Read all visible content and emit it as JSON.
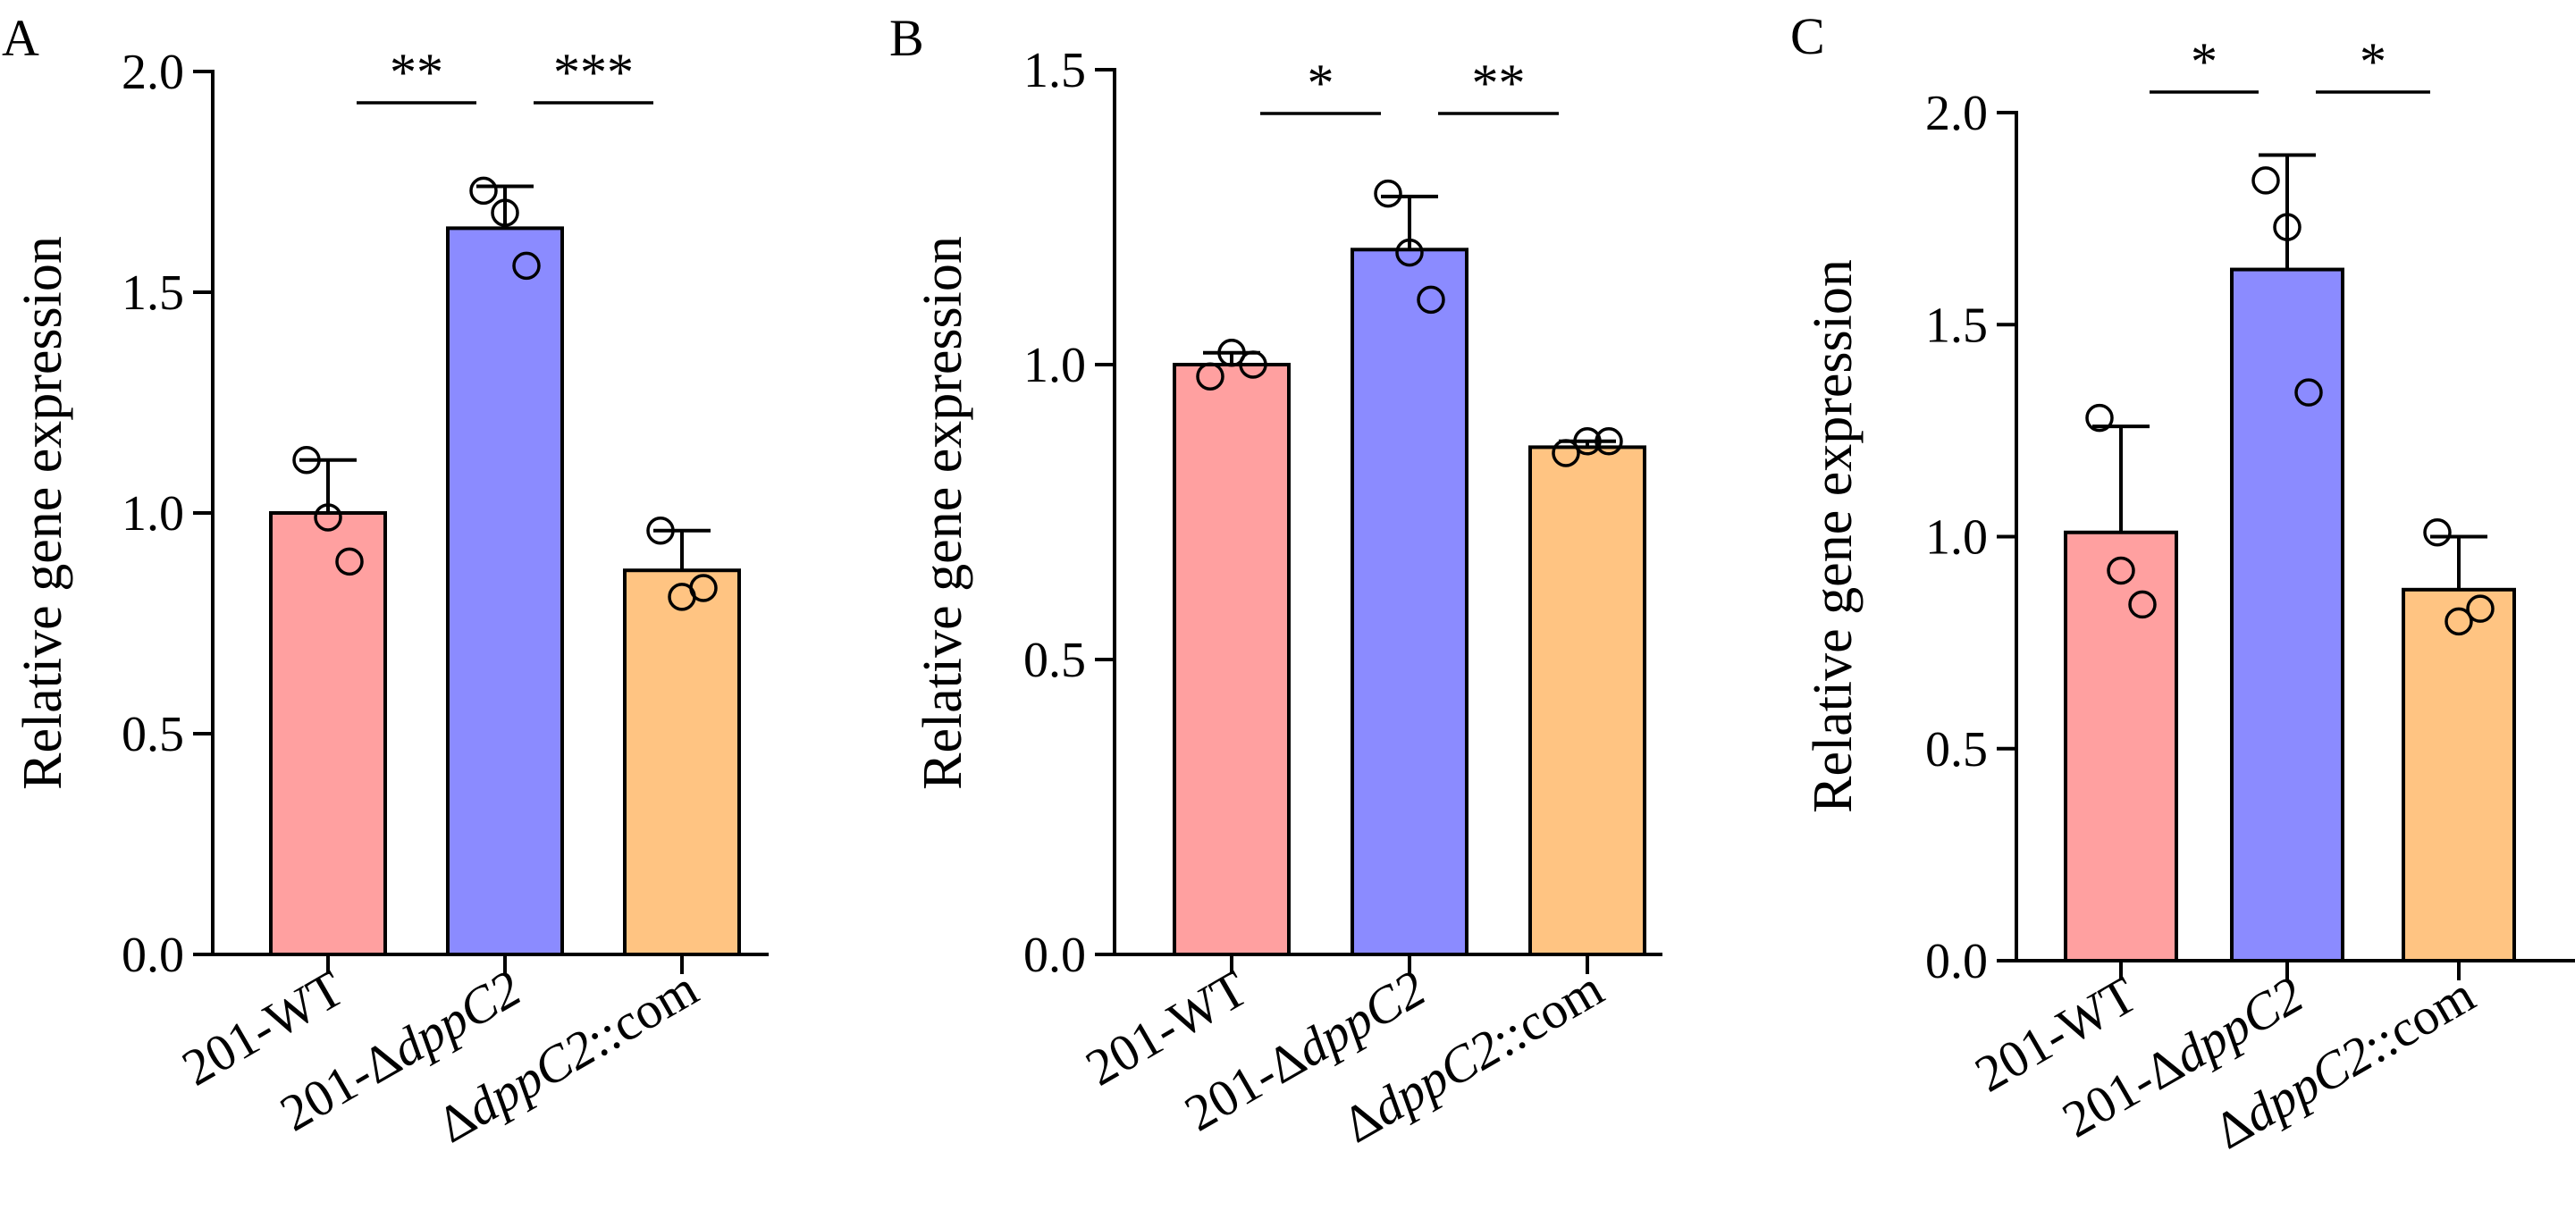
{
  "chart_data": [
    {
      "type": "bar",
      "panel": "A",
      "categories": [
        "201-WT",
        "201-ΔdppC2",
        "ΔdppC2::com"
      ],
      "category_parts": [
        {
          "prefix": "201-WT",
          "italic": "",
          "suffix": ""
        },
        {
          "prefix": "201-Δ",
          "italic": "dppC2",
          "suffix": ""
        },
        {
          "prefix": "Δ",
          "italic": "dppC2",
          "suffix": "::com"
        }
      ],
      "values": [
        1.0,
        1.645,
        0.87
      ],
      "errors": [
        0.12,
        0.095,
        0.09
      ],
      "points": [
        [
          1.12,
          0.99,
          0.89
        ],
        [
          1.73,
          1.68,
          1.56
        ],
        [
          0.96,
          0.81,
          0.83
        ]
      ],
      "significance": [
        {
          "from": 0,
          "to": 1,
          "label": "**"
        },
        {
          "from": 1,
          "to": 2,
          "label": "***"
        }
      ],
      "ylabel": "Relative gene expression",
      "ylim": [
        0,
        2.0
      ],
      "yticks": [
        0.0,
        0.5,
        1.0,
        1.5,
        2.0
      ],
      "ytick_labels": [
        "0.0",
        "0.5",
        "1.0",
        "1.5",
        "2.0"
      ],
      "colors": [
        "#ffa0a0",
        "#8b8bff",
        "#ffc482"
      ],
      "grid": false,
      "legend": "none"
    },
    {
      "type": "bar",
      "panel": "B",
      "categories": [
        "201-WT",
        "201-ΔdppC2",
        "ΔdppC2::com"
      ],
      "category_parts": [
        {
          "prefix": "201-WT",
          "italic": "",
          "suffix": ""
        },
        {
          "prefix": "201-Δ",
          "italic": "dppC2",
          "suffix": ""
        },
        {
          "prefix": "Δ",
          "italic": "dppC2",
          "suffix": "::com"
        }
      ],
      "values": [
        1.0,
        1.195,
        0.86
      ],
      "errors": [
        0.02,
        0.09,
        0.01
      ],
      "points": [
        [
          0.98,
          1.02,
          1.0
        ],
        [
          1.29,
          1.19,
          1.11
        ],
        [
          0.85,
          0.87,
          0.87
        ]
      ],
      "significance": [
        {
          "from": 0,
          "to": 1,
          "label": "*"
        },
        {
          "from": 1,
          "to": 2,
          "label": "**"
        }
      ],
      "ylabel": "Relative gene expression",
      "ylim": [
        0,
        1.5
      ],
      "yticks": [
        0.0,
        0.5,
        1.0,
        1.5
      ],
      "ytick_labels": [
        "0.0",
        "0.5",
        "1.0",
        "1.5"
      ],
      "colors": [
        "#ffa0a0",
        "#8b8bff",
        "#ffc482"
      ],
      "grid": false,
      "legend": "none"
    },
    {
      "type": "bar",
      "panel": "C",
      "categories": [
        "201-WT",
        "201-ΔdppC2",
        "ΔdppC2::com"
      ],
      "category_parts": [
        {
          "prefix": "201-WT",
          "italic": "",
          "suffix": ""
        },
        {
          "prefix": "201-Δ",
          "italic": "dppC2",
          "suffix": ""
        },
        {
          "prefix": "Δ",
          "italic": "dppC2",
          "suffix": "::com"
        }
      ],
      "values": [
        1.01,
        1.63,
        0.875
      ],
      "errors": [
        0.25,
        0.27,
        0.125
      ],
      "points": [
        [
          1.28,
          0.92,
          0.84
        ],
        [
          1.84,
          1.73,
          1.34
        ],
        [
          1.01,
          0.8,
          0.83
        ]
      ],
      "significance": [
        {
          "from": 0,
          "to": 1,
          "label": "*"
        },
        {
          "from": 1,
          "to": 2,
          "label": "*"
        }
      ],
      "ylabel": "Relative gene expression",
      "ylim": [
        0,
        2.0
      ],
      "yticks": [
        0.0,
        0.5,
        1.0,
        1.5,
        2.0
      ],
      "ytick_labels": [
        "0.0",
        "0.5",
        "1.0",
        "1.5",
        "2.0"
      ],
      "colors": [
        "#ffa0a0",
        "#8b8bff",
        "#ffc482"
      ],
      "grid": false,
      "legend": "none"
    }
  ]
}
